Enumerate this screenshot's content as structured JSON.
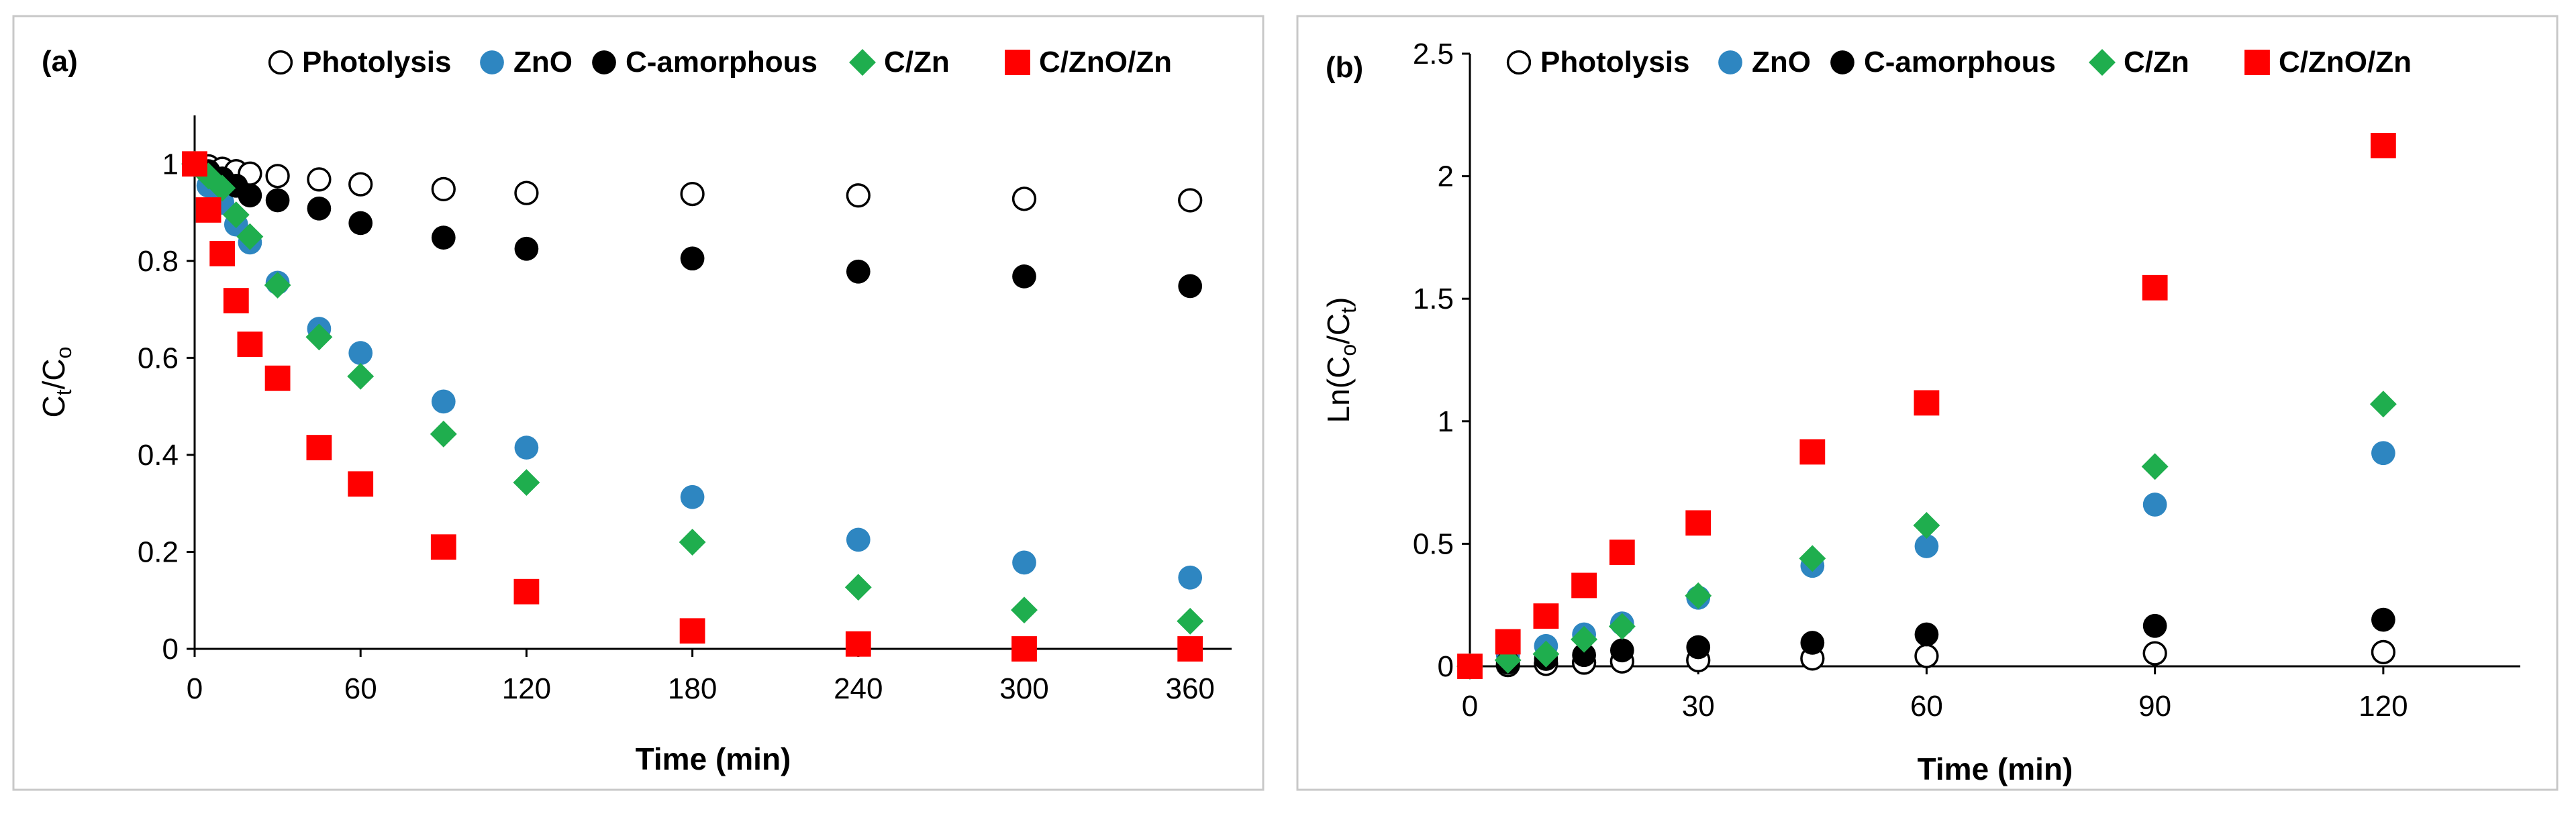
{
  "chart_data": [
    {
      "type": "scatter",
      "panel_label": "(a)",
      "xlabel": "Time (min)",
      "ylabel": {
        "base": "C",
        "sub_top": "t",
        "slash": "/",
        "base2": "C",
        "sub_bottom": "o"
      },
      "xlim": [
        0,
        375
      ],
      "ylim": [
        0,
        1.1
      ],
      "xticks": [
        "0",
        "60",
        "120",
        "180",
        "240",
        "300",
        "360"
      ],
      "xtick_values": [
        0,
        60,
        120,
        180,
        240,
        300,
        360
      ],
      "yticks": [
        "0",
        "0.2",
        "0.4",
        "0.6",
        "0.8",
        "1"
      ],
      "ytick_values": [
        0,
        0.2,
        0.4,
        0.6,
        0.8,
        1.0
      ],
      "grid": false,
      "legend_position": "top",
      "series": [
        {
          "name": "Photolysis",
          "marker": "circle-open",
          "color": "#000000",
          "x": [
            0,
            5,
            10,
            15,
            20,
            30,
            45,
            60,
            90,
            120,
            180,
            240,
            300,
            360
          ],
          "y": [
            1.0,
            0.995,
            0.99,
            0.985,
            0.98,
            0.975,
            0.968,
            0.958,
            0.948,
            0.94,
            0.938,
            0.935,
            0.928,
            0.925
          ]
        },
        {
          "name": "ZnO",
          "marker": "circle",
          "color": "#2E86C1",
          "x": [
            0,
            5,
            10,
            15,
            20,
            30,
            45,
            60,
            90,
            120,
            180,
            240,
            300,
            360
          ],
          "y": [
            1.0,
            0.955,
            0.92,
            0.875,
            0.838,
            0.755,
            0.66,
            0.61,
            0.51,
            0.415,
            0.313,
            0.225,
            0.178,
            0.147
          ]
        },
        {
          "name": "C-amorphous",
          "marker": "circle",
          "color": "#000000",
          "x": [
            0,
            5,
            10,
            15,
            20,
            30,
            45,
            60,
            90,
            120,
            180,
            240,
            300,
            360
          ],
          "y": [
            1.0,
            0.985,
            0.97,
            0.955,
            0.935,
            0.925,
            0.908,
            0.878,
            0.848,
            0.825,
            0.805,
            0.778,
            0.768,
            0.748
          ]
        },
        {
          "name": "C/Zn",
          "marker": "diamond",
          "color": "#1FAE4E",
          "x": [
            0,
            5,
            10,
            15,
            20,
            30,
            45,
            60,
            90,
            120,
            180,
            240,
            300,
            360
          ],
          "y": [
            1.0,
            0.975,
            0.95,
            0.895,
            0.85,
            0.75,
            0.643,
            0.562,
            0.443,
            0.343,
            0.22,
            0.127,
            0.08,
            0.057
          ]
        },
        {
          "name": "C/ZnO/Zn",
          "marker": "square",
          "color": "#FF0000",
          "x": [
            0,
            5,
            10,
            15,
            20,
            30,
            45,
            60,
            90,
            120,
            180,
            240,
            300,
            360
          ],
          "y": [
            1.0,
            0.905,
            0.815,
            0.718,
            0.628,
            0.558,
            0.415,
            0.34,
            0.21,
            0.118,
            0.037,
            0.01,
            0.0,
            0.0
          ]
        }
      ]
    },
    {
      "type": "scatter",
      "panel_label": "(b)",
      "xlabel": "Time (min)",
      "ylabel": {
        "base": "Ln(C",
        "sub_bottom": "o",
        "slash": "/C",
        "sub_top": "t",
        "close": ")"
      },
      "xlim": [
        0,
        138
      ],
      "ylim": [
        0,
        2.5
      ],
      "xticks": [
        "0",
        "30",
        "60",
        "90",
        "120"
      ],
      "xtick_values": [
        0,
        30,
        60,
        90,
        120
      ],
      "yticks": [
        "0",
        "0.5",
        "1",
        "1.5",
        "2",
        "2.5"
      ],
      "ytick_values": [
        0,
        0.5,
        1.0,
        1.5,
        2.0,
        2.5
      ],
      "grid": false,
      "legend_position": "top",
      "series": [
        {
          "name": "Photolysis",
          "marker": "circle-open",
          "color": "#000000",
          "x": [
            0,
            5,
            10,
            15,
            20,
            30,
            45,
            60,
            90,
            120
          ],
          "y": [
            0,
            0.005,
            0.01,
            0.015,
            0.02,
            0.025,
            0.032,
            0.042,
            0.053,
            0.058
          ]
        },
        {
          "name": "ZnO",
          "marker": "circle",
          "color": "#2E86C1",
          "x": [
            0,
            5,
            10,
            15,
            20,
            30,
            45,
            60,
            90,
            120
          ],
          "y": [
            0,
            0.045,
            0.083,
            0.13,
            0.175,
            0.28,
            0.41,
            0.49,
            0.66,
            0.87
          ]
        },
        {
          "name": "C-amorphous",
          "marker": "circle",
          "color": "#000000",
          "x": [
            0,
            5,
            10,
            15,
            20,
            30,
            45,
            60,
            90,
            120
          ],
          "y": [
            0,
            0.015,
            0.03,
            0.046,
            0.065,
            0.078,
            0.096,
            0.13,
            0.165,
            0.19
          ]
        },
        {
          "name": "C/Zn",
          "marker": "diamond",
          "color": "#1FAE4E",
          "x": [
            0,
            5,
            10,
            15,
            20,
            30,
            45,
            60,
            90,
            120
          ],
          "y": [
            0,
            0.025,
            0.05,
            0.11,
            0.163,
            0.288,
            0.44,
            0.575,
            0.815,
            1.07
          ]
        },
        {
          "name": "C/ZnO/Zn",
          "marker": "square",
          "color": "#FF0000",
          "x": [
            0,
            5,
            10,
            15,
            20,
            30,
            45,
            60,
            90,
            120
          ],
          "y": [
            0,
            0.1,
            0.205,
            0.33,
            0.465,
            0.585,
            0.875,
            1.075,
            1.545,
            2.125
          ]
        }
      ]
    }
  ]
}
